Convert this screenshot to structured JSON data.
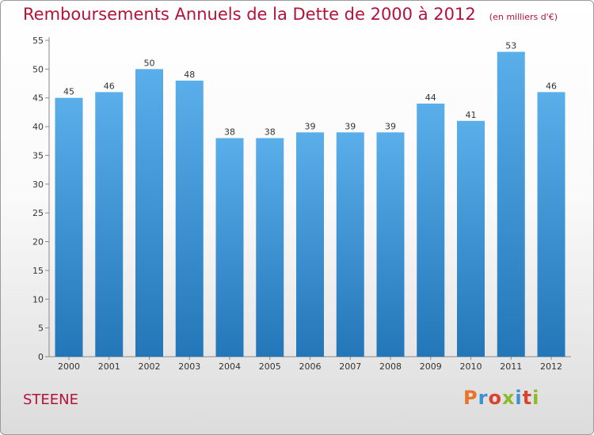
{
  "chart_data": {
    "type": "bar",
    "title": "Remboursements Annuels de la Dette de 2000 à 2012",
    "subtitle": "(en milliers d'€)",
    "categories": [
      "2000",
      "2001",
      "2002",
      "2003",
      "2004",
      "2005",
      "2006",
      "2007",
      "2008",
      "2009",
      "2010",
      "2011",
      "2012"
    ],
    "values": [
      45,
      46,
      50,
      48,
      38,
      38,
      39,
      39,
      39,
      44,
      41,
      53,
      46
    ],
    "ylim": [
      0,
      55
    ],
    "yticks": [
      0,
      5,
      10,
      15,
      20,
      25,
      30,
      35,
      40,
      45,
      50,
      55
    ],
    "grid": false,
    "legend": "none",
    "bar_color_top": "#5aaeea",
    "bar_color_bottom": "#2377b8"
  },
  "footer": {
    "commune": "STEENE",
    "brand": "Proxiti"
  },
  "colors": {
    "title": "#b5123a",
    "brand_letters": [
      "#e8732a",
      "#3b8fd3",
      "#d9442e",
      "#8cbb2a",
      "#3b8fd3",
      "#d9442e",
      "#8cbb2a"
    ]
  }
}
